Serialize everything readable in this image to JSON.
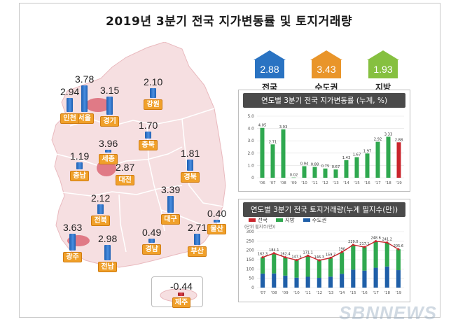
{
  "title": "2019년 3분기 전국 지가변동률 및 토지거래량",
  "summary": [
    {
      "label": "전국",
      "value": "2.88",
      "color": "#2a73c2"
    },
    {
      "label": "수도권",
      "value": "3.43",
      "color": "#e9952a"
    },
    {
      "label": "지방",
      "value": "1.93",
      "color": "#86c040"
    }
  ],
  "regions": [
    {
      "name": "서울",
      "value": "3.78"
    },
    {
      "name": "인천",
      "value": "2.94"
    },
    {
      "name": "경기",
      "value": "3.15"
    },
    {
      "name": "강원",
      "value": "2.10"
    },
    {
      "name": "충북",
      "value": "1.70"
    },
    {
      "name": "세종",
      "value": "3.96"
    },
    {
      "name": "충남",
      "value": "1.19"
    },
    {
      "name": "대전",
      "value": "2.87"
    },
    {
      "name": "경북",
      "value": "1.81"
    },
    {
      "name": "전북",
      "value": "2.12"
    },
    {
      "name": "대구",
      "value": "3.39"
    },
    {
      "name": "울산",
      "value": "0.40"
    },
    {
      "name": "광주",
      "value": "3.63"
    },
    {
      "name": "전남",
      "value": "2.98"
    },
    {
      "name": "경남",
      "value": "0.49"
    },
    {
      "name": "부산",
      "value": "2.71"
    },
    {
      "name": "제주",
      "value": "-0.44"
    }
  ],
  "chart_data": [
    {
      "type": "bar",
      "title": "연도별 3분기 전국 지가변동률 (누계, %)",
      "categories": [
        "'06",
        "'07",
        "'08",
        "'09",
        "'10",
        "'11",
        "'12",
        "'13",
        "'14",
        "'15",
        "'16",
        "'17",
        "'18",
        "'19"
      ],
      "values": [
        4.05,
        2.71,
        3.93,
        0.02,
        0.94,
        0.88,
        0.75,
        0.67,
        1.43,
        1.67,
        1.97,
        2.92,
        3.33,
        2.88
      ],
      "value_labels": [
        "4.05",
        "2.71",
        "3.93",
        "0.02",
        "0.94",
        "0.88",
        "0.75",
        "0.67",
        "1.43",
        "1.67",
        "1.97",
        "2.92",
        "3.33",
        "2.88"
      ],
      "ylim": [
        0,
        5
      ],
      "yticks": [
        "5.0",
        "4.0",
        "3.0",
        "2.0",
        "1.0",
        "0"
      ],
      "highlight_color": "#c9252c",
      "bar_color": "#2fa84f"
    },
    {
      "type": "bar",
      "title": "연도별 3분기 전국 토지거래량(누계 필지수(만))",
      "unit": "(단위 필지수(만))",
      "categories": [
        "'07",
        "'08",
        "'09",
        "'10",
        "'11",
        "'12",
        "'13",
        "'14",
        "'15",
        "'16",
        "'17",
        "'18",
        "'19"
      ],
      "series": [
        {
          "name": "전국",
          "values": [
            162.3,
            184.1,
            162.4,
            147.5,
            171.1,
            146.3,
            159.7,
            190.0,
            229.0,
            217.1,
            248.6,
            241.2,
            205.6
          ],
          "color": "#c9252c"
        },
        {
          "name": "지방",
          "values": [
            87.0,
            108.0,
            98.0,
            94.0,
            113.0,
            94.0,
            101.0,
            116.0,
            133.0,
            126.0,
            142.0,
            128.0,
            112.0
          ],
          "color": "#2fa84f"
        },
        {
          "name": "수도권",
          "values": [
            75.3,
            76.1,
            64.4,
            53.5,
            58.1,
            52.3,
            58.7,
            74.0,
            96.0,
            91.1,
            106.6,
            113.2,
            93.6
          ],
          "color": "#1f5fa8"
        }
      ],
      "value_labels": [
        "162.3",
        "184.1",
        "162.4",
        "147.5",
        "171.1",
        "146.3",
        "159.7",
        "190",
        "229.0",
        "217.1",
        "248.6",
        "241.2",
        "205.6"
      ],
      "ylim": [
        0,
        300
      ],
      "yticks": [
        "300",
        "250",
        "200",
        "150",
        "100",
        "50",
        "0"
      ]
    }
  ]
}
